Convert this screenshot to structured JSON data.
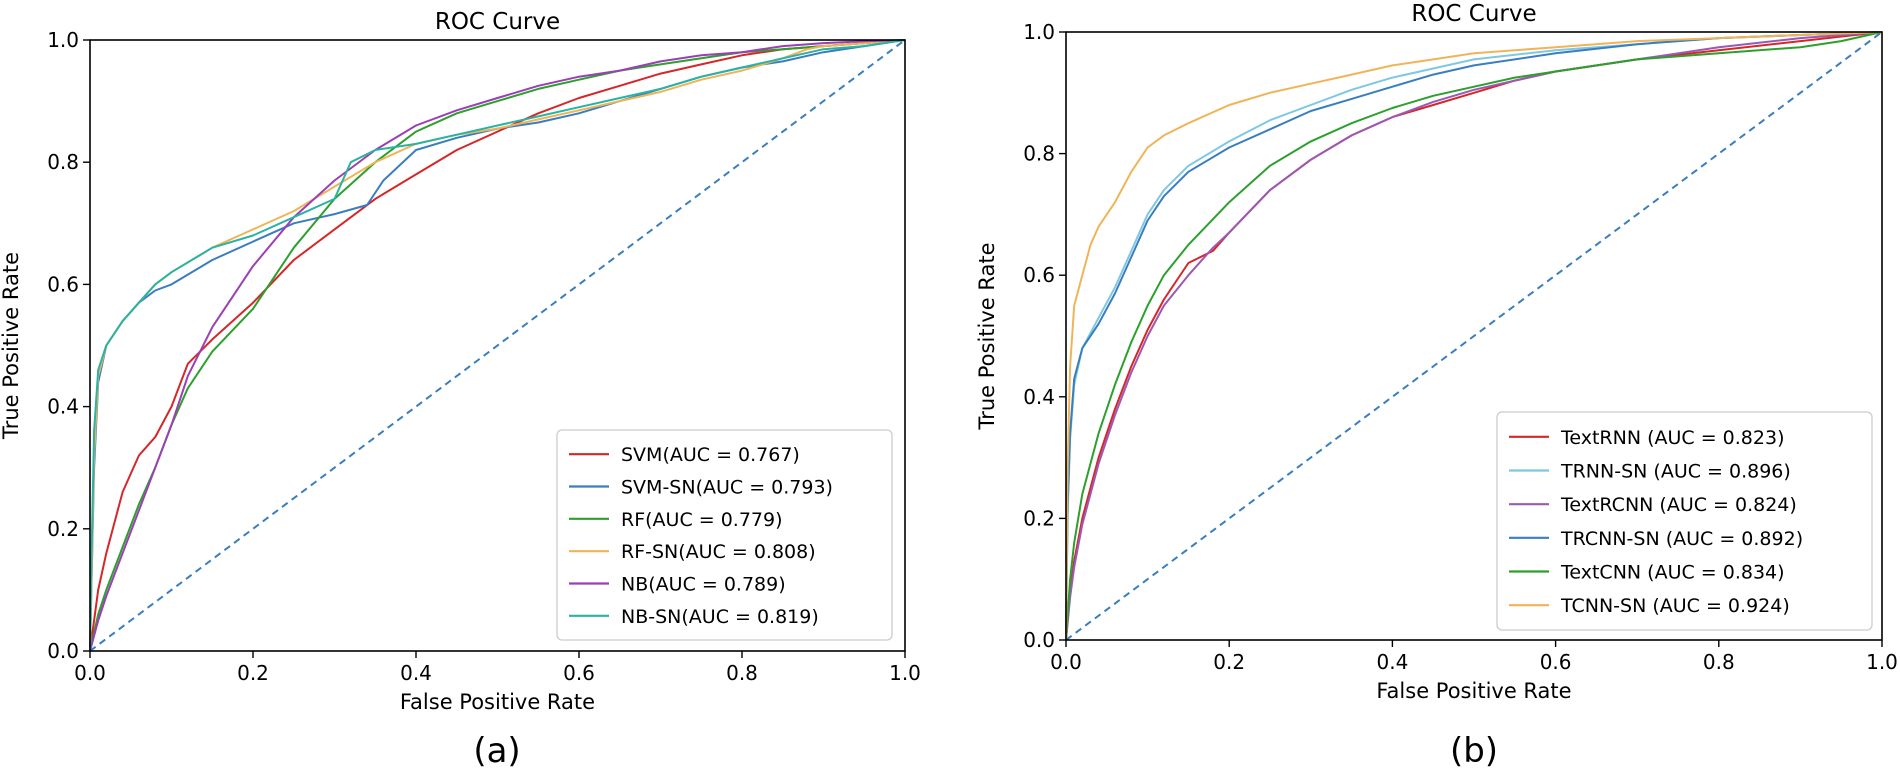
{
  "chart_data": [
    {
      "type": "line",
      "title": "ROC Curve",
      "xlabel": "False Positive Rate",
      "ylabel": "True Positive Rate",
      "caption": "(a)",
      "xlim": [
        0,
        1
      ],
      "ylim": [
        0,
        1
      ],
      "xticks": [
        "0.0",
        "0.2",
        "0.4",
        "0.6",
        "0.8",
        "1.0"
      ],
      "yticks": [
        "0.0",
        "0.2",
        "0.4",
        "0.6",
        "0.8",
        "1.0"
      ],
      "legend_position": "lower-right",
      "diagonal": {
        "color": "#3a7ebf",
        "style": "dashed"
      },
      "series": [
        {
          "name": "SVM(AUC = 0.767)",
          "color": "#d62728",
          "x": [
            0,
            0.01,
            0.02,
            0.04,
            0.06,
            0.08,
            0.1,
            0.12,
            0.15,
            0.2,
            0.25,
            0.3,
            0.35,
            0.4,
            0.45,
            0.5,
            0.55,
            0.6,
            0.65,
            0.7,
            0.75,
            0.8,
            0.85,
            0.9,
            0.95,
            1.0
          ],
          "y": [
            0,
            0.1,
            0.16,
            0.26,
            0.32,
            0.35,
            0.4,
            0.47,
            0.51,
            0.57,
            0.64,
            0.69,
            0.74,
            0.78,
            0.82,
            0.85,
            0.88,
            0.905,
            0.925,
            0.945,
            0.96,
            0.975,
            0.985,
            0.99,
            0.995,
            1.0
          ]
        },
        {
          "name": "SVM-SN(AUC = 0.793)",
          "color": "#3a7ebf",
          "x": [
            0,
            0.005,
            0.01,
            0.02,
            0.04,
            0.06,
            0.08,
            0.1,
            0.15,
            0.2,
            0.25,
            0.3,
            0.34,
            0.36,
            0.4,
            0.45,
            0.5,
            0.55,
            0.6,
            0.65,
            0.7,
            0.75,
            0.8,
            0.85,
            0.9,
            0.95,
            1.0
          ],
          "y": [
            0,
            0.3,
            0.44,
            0.5,
            0.54,
            0.57,
            0.59,
            0.6,
            0.64,
            0.67,
            0.7,
            0.715,
            0.73,
            0.77,
            0.82,
            0.84,
            0.855,
            0.865,
            0.88,
            0.9,
            0.92,
            0.94,
            0.955,
            0.965,
            0.98,
            0.99,
            1.0
          ]
        },
        {
          "name": "RF(AUC = 0.779)",
          "color": "#2ca02c",
          "x": [
            0,
            0.01,
            0.02,
            0.04,
            0.06,
            0.08,
            0.1,
            0.12,
            0.15,
            0.2,
            0.25,
            0.3,
            0.35,
            0.4,
            0.45,
            0.5,
            0.55,
            0.6,
            0.65,
            0.7,
            0.75,
            0.8,
            0.85,
            0.9,
            0.95,
            1.0
          ],
          "y": [
            0,
            0.06,
            0.1,
            0.17,
            0.24,
            0.3,
            0.37,
            0.43,
            0.49,
            0.56,
            0.66,
            0.74,
            0.8,
            0.85,
            0.88,
            0.9,
            0.92,
            0.935,
            0.95,
            0.96,
            0.97,
            0.98,
            0.985,
            0.99,
            0.995,
            1.0
          ]
        },
        {
          "name": "RF-SN(AUC = 0.808)",
          "color": "#f0b458",
          "x": [
            0,
            0.005,
            0.01,
            0.02,
            0.04,
            0.06,
            0.08,
            0.1,
            0.15,
            0.2,
            0.25,
            0.3,
            0.35,
            0.4,
            0.45,
            0.5,
            0.55,
            0.6,
            0.65,
            0.7,
            0.75,
            0.8,
            0.85,
            0.88,
            0.9,
            0.95,
            1.0
          ],
          "y": [
            0,
            0.32,
            0.45,
            0.5,
            0.54,
            0.57,
            0.6,
            0.62,
            0.66,
            0.69,
            0.72,
            0.76,
            0.8,
            0.83,
            0.845,
            0.855,
            0.87,
            0.885,
            0.9,
            0.915,
            0.935,
            0.95,
            0.97,
            0.985,
            0.99,
            0.995,
            1.0
          ]
        },
        {
          "name": "NB(AUC = 0.789)",
          "color": "#9b3fb5",
          "x": [
            0,
            0.01,
            0.02,
            0.04,
            0.06,
            0.08,
            0.1,
            0.12,
            0.15,
            0.2,
            0.25,
            0.3,
            0.35,
            0.4,
            0.45,
            0.5,
            0.55,
            0.6,
            0.65,
            0.7,
            0.75,
            0.8,
            0.85,
            0.9,
            0.95,
            1.0
          ],
          "y": [
            0,
            0.05,
            0.09,
            0.16,
            0.23,
            0.3,
            0.37,
            0.45,
            0.53,
            0.63,
            0.71,
            0.77,
            0.82,
            0.86,
            0.885,
            0.905,
            0.925,
            0.94,
            0.95,
            0.965,
            0.975,
            0.98,
            0.99,
            0.995,
            0.998,
            1.0
          ]
        },
        {
          "name": "NB-SN(AUC = 0.819)",
          "color": "#2ab3a3",
          "x": [
            0,
            0.002,
            0.005,
            0.01,
            0.02,
            0.04,
            0.06,
            0.08,
            0.1,
            0.15,
            0.2,
            0.25,
            0.3,
            0.32,
            0.35,
            0.4,
            0.45,
            0.5,
            0.55,
            0.6,
            0.65,
            0.7,
            0.75,
            0.8,
            0.85,
            0.9,
            0.95,
            1.0
          ],
          "y": [
            0,
            0.16,
            0.36,
            0.46,
            0.5,
            0.54,
            0.57,
            0.6,
            0.62,
            0.66,
            0.68,
            0.71,
            0.74,
            0.8,
            0.82,
            0.83,
            0.845,
            0.86,
            0.875,
            0.89,
            0.905,
            0.92,
            0.94,
            0.955,
            0.97,
            0.985,
            0.99,
            1.0
          ]
        }
      ]
    },
    {
      "type": "line",
      "title": "ROC Curve",
      "xlabel": "False Positive Rate",
      "ylabel": "True Positive Rate",
      "caption": "(b)",
      "xlim": [
        0,
        1
      ],
      "ylim": [
        0,
        1
      ],
      "xticks": [
        "0.0",
        "0.2",
        "0.4",
        "0.6",
        "0.8",
        "1.0"
      ],
      "yticks": [
        "0.0",
        "0.2",
        "0.4",
        "0.6",
        "0.8",
        "1.0"
      ],
      "legend_position": "lower-right",
      "diagonal": {
        "color": "#3a7ebf",
        "style": "dashed"
      },
      "series": [
        {
          "name": "TextRNN (AUC = 0.823)",
          "color": "#d62728",
          "x": [
            0,
            0.005,
            0.01,
            0.02,
            0.04,
            0.06,
            0.08,
            0.1,
            0.12,
            0.15,
            0.18,
            0.2,
            0.25,
            0.3,
            0.35,
            0.4,
            0.45,
            0.5,
            0.55,
            0.6,
            0.7,
            0.8,
            0.9,
            1.0
          ],
          "y": [
            0,
            0.08,
            0.13,
            0.2,
            0.3,
            0.38,
            0.45,
            0.51,
            0.56,
            0.62,
            0.64,
            0.67,
            0.74,
            0.79,
            0.83,
            0.86,
            0.88,
            0.9,
            0.92,
            0.935,
            0.955,
            0.97,
            0.985,
            1.0
          ]
        },
        {
          "name": "TRNN-SN (AUC = 0.896)",
          "color": "#7ec8e3",
          "x": [
            0,
            0.002,
            0.005,
            0.01,
            0.02,
            0.04,
            0.06,
            0.08,
            0.1,
            0.12,
            0.15,
            0.2,
            0.25,
            0.3,
            0.35,
            0.4,
            0.45,
            0.5,
            0.6,
            0.7,
            0.8,
            0.9,
            1.0
          ],
          "y": [
            0,
            0.2,
            0.33,
            0.42,
            0.48,
            0.53,
            0.58,
            0.64,
            0.7,
            0.74,
            0.78,
            0.82,
            0.855,
            0.88,
            0.905,
            0.925,
            0.94,
            0.955,
            0.97,
            0.98,
            0.99,
            0.995,
            1.0
          ]
        },
        {
          "name": "TextRCNN (AUC = 0.824)",
          "color": "#9b59b6",
          "x": [
            0,
            0.005,
            0.01,
            0.02,
            0.04,
            0.06,
            0.08,
            0.1,
            0.12,
            0.15,
            0.18,
            0.2,
            0.25,
            0.3,
            0.35,
            0.4,
            0.45,
            0.5,
            0.55,
            0.6,
            0.7,
            0.8,
            0.9,
            1.0
          ],
          "y": [
            0,
            0.07,
            0.12,
            0.19,
            0.29,
            0.37,
            0.44,
            0.5,
            0.55,
            0.6,
            0.645,
            0.67,
            0.74,
            0.79,
            0.83,
            0.86,
            0.885,
            0.905,
            0.92,
            0.935,
            0.955,
            0.975,
            0.99,
            1.0
          ]
        },
        {
          "name": "TRCNN-SN (AUC = 0.892)",
          "color": "#3a7ebf",
          "x": [
            0,
            0.002,
            0.005,
            0.01,
            0.02,
            0.04,
            0.06,
            0.08,
            0.1,
            0.12,
            0.15,
            0.2,
            0.25,
            0.3,
            0.35,
            0.4,
            0.45,
            0.5,
            0.6,
            0.7,
            0.8,
            0.9,
            1.0
          ],
          "y": [
            0,
            0.22,
            0.34,
            0.43,
            0.48,
            0.52,
            0.57,
            0.63,
            0.69,
            0.73,
            0.77,
            0.81,
            0.84,
            0.87,
            0.89,
            0.91,
            0.93,
            0.945,
            0.965,
            0.98,
            0.99,
            0.995,
            1.0
          ]
        },
        {
          "name": "TextCNN (AUC = 0.834)",
          "color": "#2ca02c",
          "x": [
            0,
            0.005,
            0.01,
            0.02,
            0.04,
            0.06,
            0.08,
            0.1,
            0.12,
            0.15,
            0.2,
            0.25,
            0.3,
            0.35,
            0.4,
            0.45,
            0.5,
            0.55,
            0.6,
            0.7,
            0.8,
            0.9,
            0.95,
            1.0
          ],
          "y": [
            0,
            0.1,
            0.16,
            0.24,
            0.34,
            0.42,
            0.49,
            0.55,
            0.6,
            0.65,
            0.72,
            0.78,
            0.82,
            0.85,
            0.875,
            0.895,
            0.91,
            0.925,
            0.935,
            0.955,
            0.965,
            0.975,
            0.985,
            1.0
          ]
        },
        {
          "name": "TCNN-SN (AUC = 0.924)",
          "color": "#f0b458",
          "x": [
            0,
            0.002,
            0.005,
            0.01,
            0.02,
            0.03,
            0.04,
            0.06,
            0.08,
            0.1,
            0.12,
            0.15,
            0.2,
            0.25,
            0.3,
            0.35,
            0.4,
            0.45,
            0.5,
            0.6,
            0.7,
            0.8,
            0.9,
            1.0
          ],
          "y": [
            0,
            0.28,
            0.45,
            0.55,
            0.6,
            0.65,
            0.68,
            0.72,
            0.77,
            0.81,
            0.83,
            0.85,
            0.88,
            0.9,
            0.915,
            0.93,
            0.945,
            0.955,
            0.965,
            0.975,
            0.985,
            0.99,
            0.995,
            1.0
          ]
        }
      ]
    }
  ]
}
